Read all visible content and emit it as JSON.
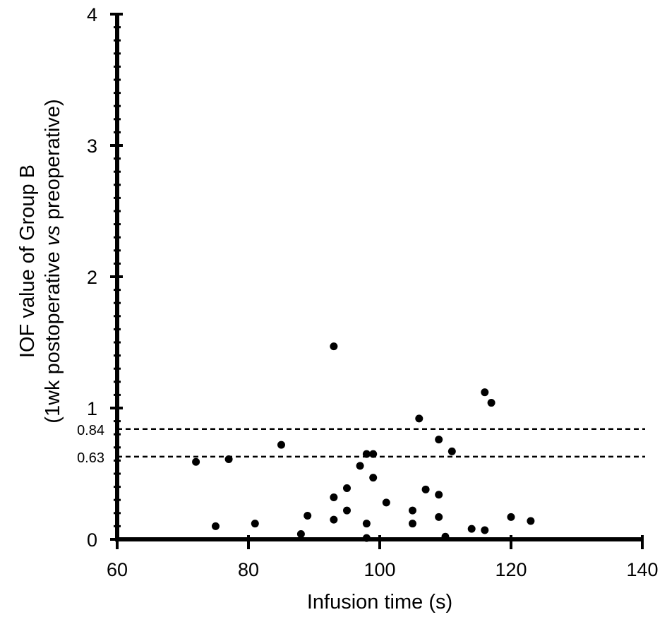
{
  "chart_data": {
    "type": "scatter",
    "title": "",
    "xlabel": "Infusion time (s)",
    "ylabel_line1": "IOF value of Group B",
    "ylabel_line2_pre": "(1wk postoperative ",
    "ylabel_line2_italic": "vs",
    "ylabel_line2_post": " preoperative)",
    "xlim": [
      60,
      140
    ],
    "ylim": [
      0,
      4
    ],
    "x_ticks": [
      60,
      80,
      100,
      120,
      140
    ],
    "x_tick_labels": [
      "60",
      "80",
      "100",
      "120",
      "140"
    ],
    "y_ticks": [
      0,
      1,
      2,
      3,
      4
    ],
    "y_tick_labels": [
      "0",
      "1",
      "2",
      "3",
      "4"
    ],
    "reference_lines": [
      {
        "y": 0.84,
        "label": "0.84",
        "style": "dashed"
      },
      {
        "y": 0.63,
        "label": "0.63",
        "style": "dashed"
      }
    ],
    "grid": false,
    "marker_color": "#000000",
    "points": [
      {
        "x": 72,
        "y": 0.59
      },
      {
        "x": 75,
        "y": 0.1
      },
      {
        "x": 77,
        "y": 0.61
      },
      {
        "x": 81,
        "y": 0.12
      },
      {
        "x": 85,
        "y": 0.72
      },
      {
        "x": 88,
        "y": 0.04
      },
      {
        "x": 89,
        "y": 0.18
      },
      {
        "x": 93,
        "y": 1.47
      },
      {
        "x": 93,
        "y": 0.32
      },
      {
        "x": 93,
        "y": 0.15
      },
      {
        "x": 95,
        "y": 0.39
      },
      {
        "x": 95,
        "y": 0.22
      },
      {
        "x": 97,
        "y": 0.56
      },
      {
        "x": 98,
        "y": 0.65
      },
      {
        "x": 98,
        "y": 0.12
      },
      {
        "x": 98,
        "y": 0.01
      },
      {
        "x": 99,
        "y": 0.65
      },
      {
        "x": 99,
        "y": 0.47
      },
      {
        "x": 101,
        "y": 0.28
      },
      {
        "x": 105,
        "y": 0.22
      },
      {
        "x": 105,
        "y": 0.12
      },
      {
        "x": 106,
        "y": 0.92
      },
      {
        "x": 107,
        "y": 0.38
      },
      {
        "x": 109,
        "y": 0.76
      },
      {
        "x": 109,
        "y": 0.34
      },
      {
        "x": 109,
        "y": 0.17
      },
      {
        "x": 110,
        "y": 0.02
      },
      {
        "x": 111,
        "y": 0.67
      },
      {
        "x": 114,
        "y": 0.08
      },
      {
        "x": 116,
        "y": 1.12
      },
      {
        "x": 116,
        "y": 0.07
      },
      {
        "x": 117,
        "y": 1.04
      },
      {
        "x": 120,
        "y": 0.17
      },
      {
        "x": 123,
        "y": 0.14
      }
    ]
  }
}
